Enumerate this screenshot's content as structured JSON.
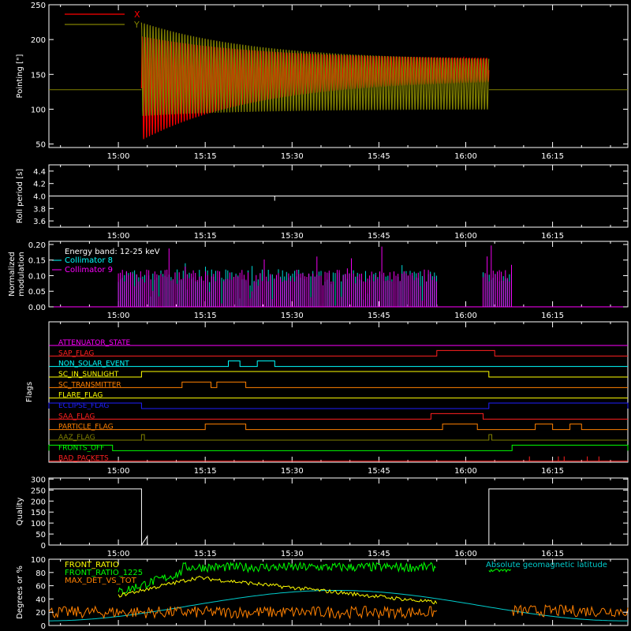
{
  "x_tick_labels": [
    "15:00",
    "15:15",
    "15:30",
    "15:45",
    "16:00",
    "16:15"
  ],
  "chart_data": [
    {
      "type": "line",
      "ylabel": "Pointing [\"]",
      "yticks": [
        "50",
        "100",
        "150",
        "200",
        "250"
      ],
      "ylim": [
        45,
        250
      ],
      "legend_position": "top-left",
      "series": [
        {
          "name": "X",
          "color": "#ff0000"
        },
        {
          "name": "Y",
          "color": "#808000"
        }
      ],
      "baseline": 128,
      "oscillation": {
        "start": "15:04",
        "end": "16:04",
        "x_envelope": {
          "start": [
            55,
            205
          ],
          "end": [
            143,
            172
          ]
        },
        "y_envelope": {
          "start": [
            90,
            225
          ],
          "end": [
            100,
            170
          ]
        }
      }
    },
    {
      "type": "line",
      "ylabel": "Roll period [s]",
      "yticks": [
        "3.6",
        "3.8",
        "4.0",
        "4.2",
        "4.4"
      ],
      "ylim": [
        3.5,
        4.5
      ],
      "value": 4.0,
      "series": [
        {
          "color": "#ffffff"
        }
      ]
    },
    {
      "type": "line",
      "ylabel": "Normalized modulation",
      "yticks": [
        "0.00",
        "0.05",
        "0.10",
        "0.15",
        "0.20"
      ],
      "ylim": [
        0,
        0.21
      ],
      "annotation": "Energy band: 12-25 keV",
      "legend_position": "top-left",
      "series": [
        {
          "name": "Collimator 8",
          "color": "#00ffff"
        },
        {
          "name": "Collimator 9",
          "color": "#ff00ff"
        }
      ],
      "active_intervals": [
        [
          "15:00",
          "15:55"
        ],
        [
          "16:03",
          "16:08"
        ]
      ],
      "typical_value": 0.1
    },
    {
      "type": "line",
      "ylabel": "Flags",
      "flags": [
        {
          "name": "ATTENUATOR_STATE",
          "color": "#ff00ff"
        },
        {
          "name": "SAP_FLAG",
          "color": "#ff2020"
        },
        {
          "name": "NON_SOLAR_EVENT",
          "color": "#00ffff"
        },
        {
          "name": "SC_IN_SUNLIGHT",
          "color": "#ffff00"
        },
        {
          "name": "SC_TRANSMITTER",
          "color": "#ff8000"
        },
        {
          "name": "FLARE_FLAG",
          "color": "#ffff00"
        },
        {
          "name": "ECLIPSE_FLAG",
          "color": "#2020ff"
        },
        {
          "name": "SAA_FLAG",
          "color": "#ff2020"
        },
        {
          "name": "PARTICLE_FLAG",
          "color": "#ff8000"
        },
        {
          "name": "AAZ_FLAG",
          "color": "#808000"
        },
        {
          "name": "FRONTS_OFF",
          "color": "#00ff00"
        },
        {
          "name": "BAD_PACKETS",
          "color": "#ff2020"
        }
      ]
    },
    {
      "type": "line",
      "ylabel": "Quality",
      "yticks": [
        "0",
        "50",
        "100",
        "150",
        "200",
        "250",
        "300"
      ],
      "ylim": [
        0,
        305
      ],
      "series": [
        {
          "color": "#ffffff",
          "high": 255,
          "low": 0,
          "high_intervals": [
            [
              "14:48",
              "15:04"
            ],
            [
              "16:04",
              "16:25"
            ]
          ]
        }
      ]
    },
    {
      "type": "line",
      "ylabel": "Degrees or %",
      "yticks": [
        "0",
        "20",
        "40",
        "60",
        "80",
        "100"
      ],
      "ylim": [
        0,
        100
      ],
      "series": [
        {
          "name": "FRONT_RATIO",
          "color": "#ffff00"
        },
        {
          "name": "FRONT_RATIO_1225",
          "color": "#00ff00"
        },
        {
          "name": "MAX_DET_VS_TOT",
          "color": "#ff8000"
        },
        {
          "name": "Absolute geomagnetic latitude",
          "color": "#00cccc"
        }
      ]
    }
  ]
}
